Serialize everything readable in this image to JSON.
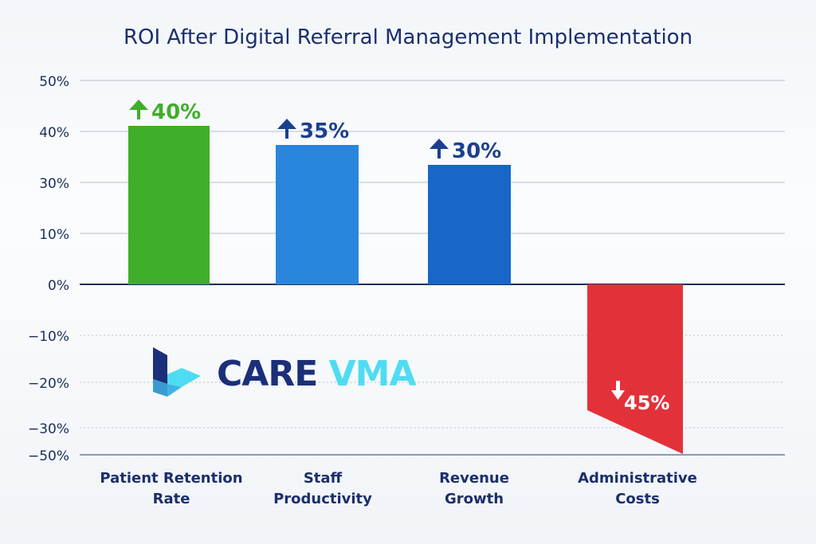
{
  "chart_data": {
    "type": "bar",
    "title": "ROI After Digital Referral Management Implementation",
    "categories": [
      "Patient Retention Rate",
      "Staff Productivity",
      "Revenue Growth",
      "Administrative Costs"
    ],
    "category_lines": [
      [
        "Patient Retention",
        "Rate"
      ],
      [
        "Staff",
        "Productivity"
      ],
      [
        "Revenue",
        "Growth"
      ],
      [
        "Administrative",
        "Costs"
      ]
    ],
    "values": [
      40,
      35,
      30,
      -45
    ],
    "data_labels": [
      "40%",
      "35%",
      "30%",
      "45%"
    ],
    "directions": [
      "up",
      "up",
      "up",
      "down"
    ],
    "colors": [
      "#3fae2a",
      "#2a86dc",
      "#1766c8",
      "#e3313a"
    ],
    "label_colors": [
      "#3fae2a",
      "#1b3f8f",
      "#1b3f8f",
      "#ffffff"
    ],
    "y_tick_labels": [
      "50%",
      "40%",
      "30%",
      "10%",
      "0%",
      "−10%",
      "−20%",
      "−30%",
      "−50%"
    ],
    "ylim": [
      -50,
      50
    ],
    "grid": true,
    "legend": "none"
  },
  "logo": {
    "text_dark": "CARE",
    "text_light": "VMA",
    "color_dark": "#1b2f7a",
    "color_light": "#4fdcf2"
  }
}
